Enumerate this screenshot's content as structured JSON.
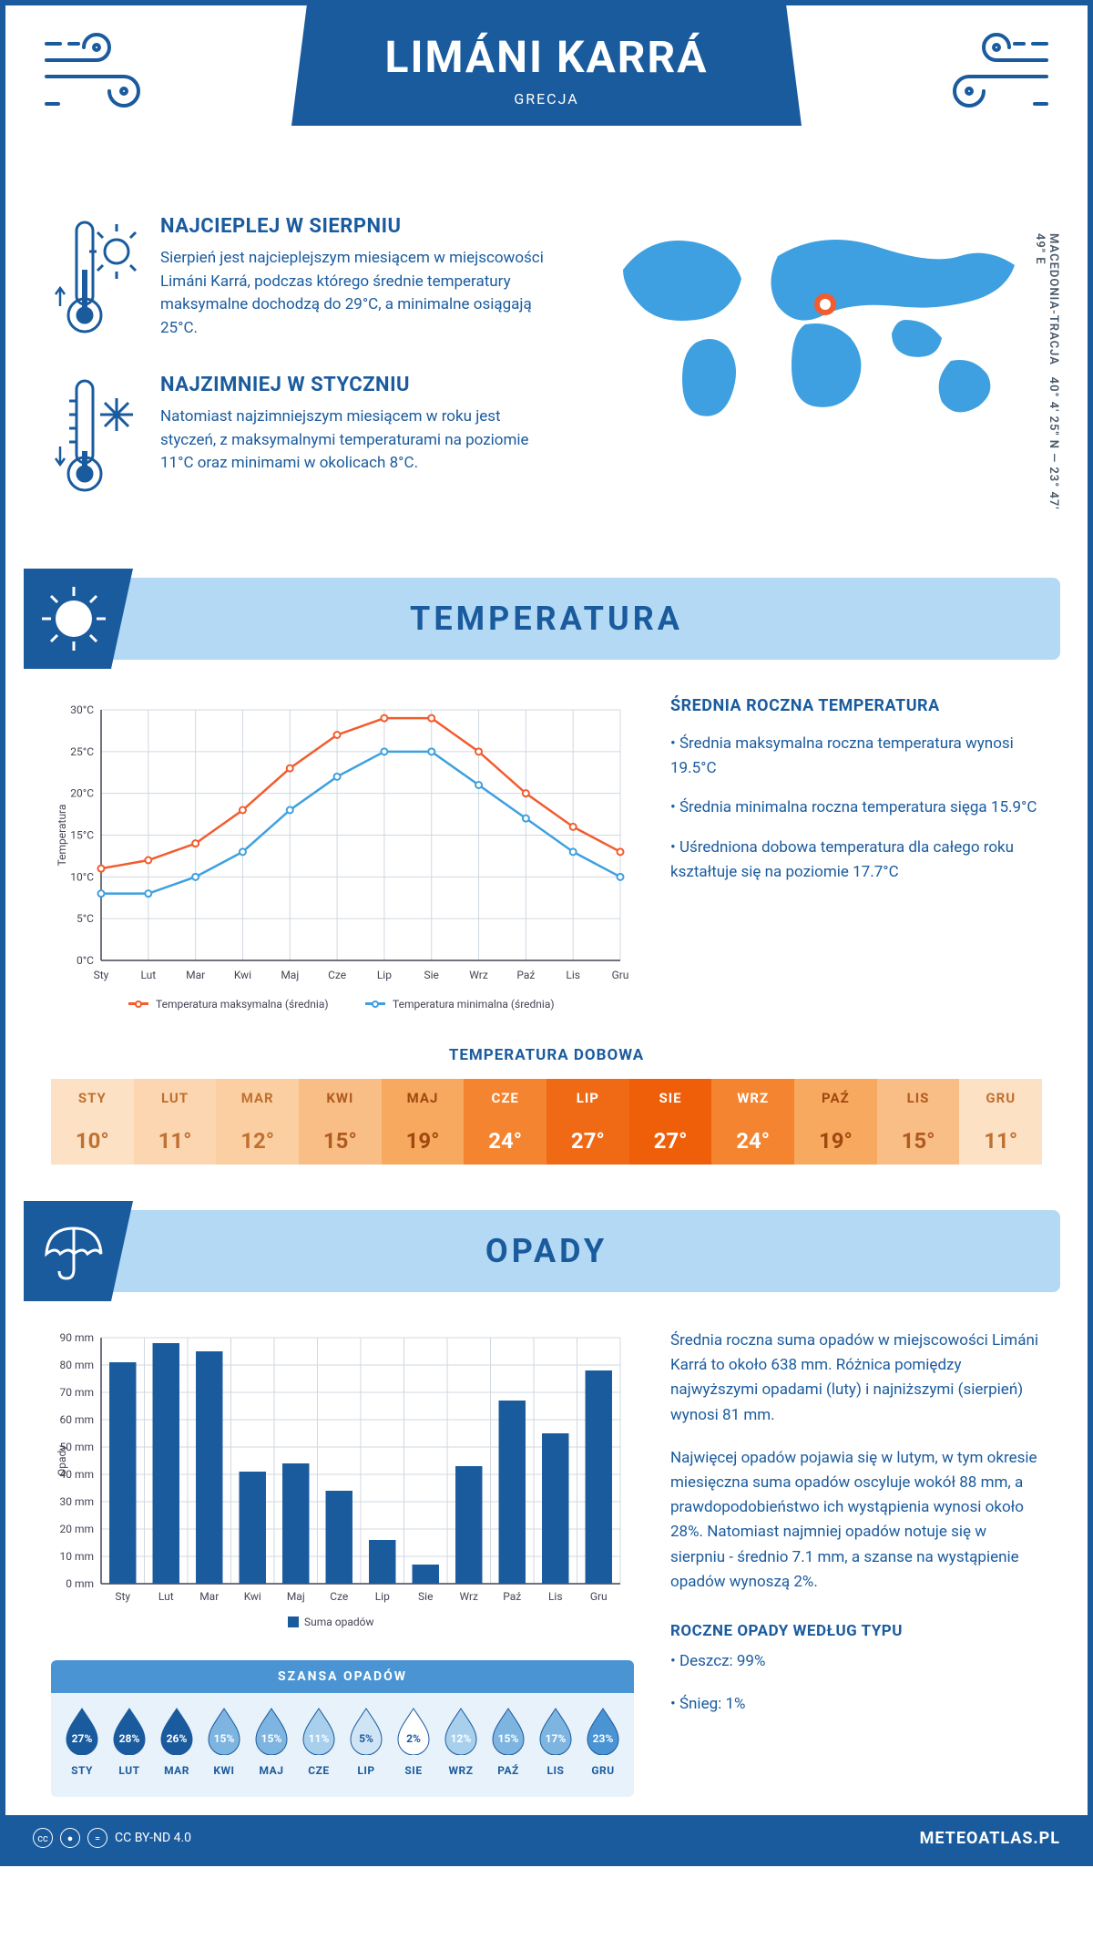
{
  "header": {
    "title": "LIMÁNI KARRÁ",
    "subtitle": "GRECJA"
  },
  "coords": "40° 4' 25\" N — 23° 47' 49\" E",
  "region": "MACEDONIA-TRACJA",
  "intro": {
    "warm": {
      "title": "NAJCIEPLEJ W SIERPNIU",
      "text": "Sierpień jest najcieplejszym miesiącem w miejscowości Limáni Karrá, podczas którego średnie temperatury maksymalne dochodzą do 29°C, a minimalne osiągają 25°C."
    },
    "cold": {
      "title": "NAJZIMNIEJ W STYCZNIU",
      "text": "Natomiast najzimniejszym miesiącem w roku jest styczeń, z maksymalnymi temperaturami na poziomie 11°C oraz minimami w okolicach 8°C."
    }
  },
  "sections": {
    "temperature_title": "TEMPERATURA",
    "precipitation_title": "OPADY"
  },
  "temperature": {
    "months": [
      "Sty",
      "Lut",
      "Mar",
      "Kwi",
      "Maj",
      "Cze",
      "Lip",
      "Sie",
      "Wrz",
      "Paź",
      "Lis",
      "Gru"
    ],
    "max": [
      11,
      12,
      14,
      18,
      23,
      27,
      29,
      29,
      25,
      20,
      16,
      13
    ],
    "min": [
      8,
      8,
      10,
      13,
      18,
      22,
      25,
      25,
      21,
      17,
      13,
      10
    ],
    "ylabel": "Temperatura",
    "ylim": [
      0,
      30
    ],
    "ytick_step": 5,
    "line_colors": {
      "max": "#f25c2e",
      "min": "#3ea0e0"
    },
    "grid_color": "#d0d8e0",
    "legend_max": "Temperatura maksymalna (średnia)",
    "legend_min": "Temperatura minimalna (średnia)",
    "info_title": "ŚREDNIA ROCZNA TEMPERATURA",
    "info_lines": [
      "• Średnia maksymalna roczna temperatura wynosi 19.5°C",
      "• Średnia minimalna roczna temperatura sięga 15.9°C",
      "• Uśredniona dobowa temperatura dla całego roku kształtuje się na poziomie 17.7°C"
    ]
  },
  "daily": {
    "title": "TEMPERATURA DOBOWA",
    "months": [
      "STY",
      "LUT",
      "MAR",
      "KWI",
      "MAJ",
      "CZE",
      "LIP",
      "SIE",
      "WRZ",
      "PAŹ",
      "LIS",
      "GRU"
    ],
    "values": [
      "10°",
      "11°",
      "12°",
      "15°",
      "19°",
      "24°",
      "27°",
      "27°",
      "24°",
      "19°",
      "15°",
      "11°"
    ],
    "colors": [
      "#fce1c4",
      "#fbd6b0",
      "#fbcfa1",
      "#f9be85",
      "#f7a95f",
      "#f4842f",
      "#f06a16",
      "#ef5f0a",
      "#f4842f",
      "#f7a95f",
      "#f9be85",
      "#fce1c4"
    ],
    "text_colors": [
      "#c07030",
      "#c07030",
      "#c07030",
      "#b05a20",
      "#a04810",
      "#ffffff",
      "#ffffff",
      "#ffffff",
      "#ffffff",
      "#a04810",
      "#b05a20",
      "#c07030"
    ]
  },
  "precipitation": {
    "months": [
      "Sty",
      "Lut",
      "Mar",
      "Kwi",
      "Maj",
      "Cze",
      "Lip",
      "Sie",
      "Wrz",
      "Paź",
      "Lis",
      "Gru"
    ],
    "values": [
      81,
      88,
      85,
      41,
      44,
      34,
      16,
      7,
      43,
      67,
      55,
      78
    ],
    "ylabel": "Opady",
    "ylim": [
      0,
      90
    ],
    "ytick_step": 10,
    "bar_color": "#1a5b9e",
    "grid_color": "#d0d8e0",
    "legend": "Suma opadów",
    "text1": "Średnia roczna suma opadów w miejscowości Limáni Karrá to około 638 mm. Różnica pomiędzy najwyższymi opadami (luty) i najniższymi (sierpień) wynosi 81 mm.",
    "text2": "Najwięcej opadów pojawia się w lutym, w tym okresie miesięczna suma opadów oscyluje wokół 88 mm, a prawdopodobieństwo ich wystąpienia wynosi około 28%. Natomiast najmniej opadów notuje się w sierpniu - średnio 7.1 mm, a szanse na wystąpienie opadów wynoszą 2%.",
    "type_title": "ROCZNE OPADY WEDŁUG TYPU",
    "type_lines": [
      "• Deszcz: 99%",
      "• Śnieg: 1%"
    ]
  },
  "drops": {
    "title": "SZANSA OPADÓW",
    "months": [
      "STY",
      "LUT",
      "MAR",
      "KWI",
      "MAJ",
      "CZE",
      "LIP",
      "SIE",
      "WRZ",
      "PAŹ",
      "LIS",
      "GRU"
    ],
    "values": [
      "27%",
      "28%",
      "26%",
      "15%",
      "15%",
      "11%",
      "5%",
      "2%",
      "12%",
      "15%",
      "17%",
      "23%"
    ],
    "fills": [
      "#1a5b9e",
      "#1a5b9e",
      "#1a5b9e",
      "#7db4e0",
      "#7db4e0",
      "#a8cfec",
      "#cfe5f5",
      "#ffffff",
      "#a8cfec",
      "#7db4e0",
      "#7db4e0",
      "#4a94d4"
    ],
    "text_colors": [
      "#ffffff",
      "#ffffff",
      "#ffffff",
      "#ffffff",
      "#ffffff",
      "#ffffff",
      "#1a5b9e",
      "#1a5b9e",
      "#ffffff",
      "#ffffff",
      "#ffffff",
      "#ffffff"
    ]
  },
  "footer": {
    "license": "CC BY-ND 4.0",
    "brand": "METEOATLAS.PL"
  }
}
